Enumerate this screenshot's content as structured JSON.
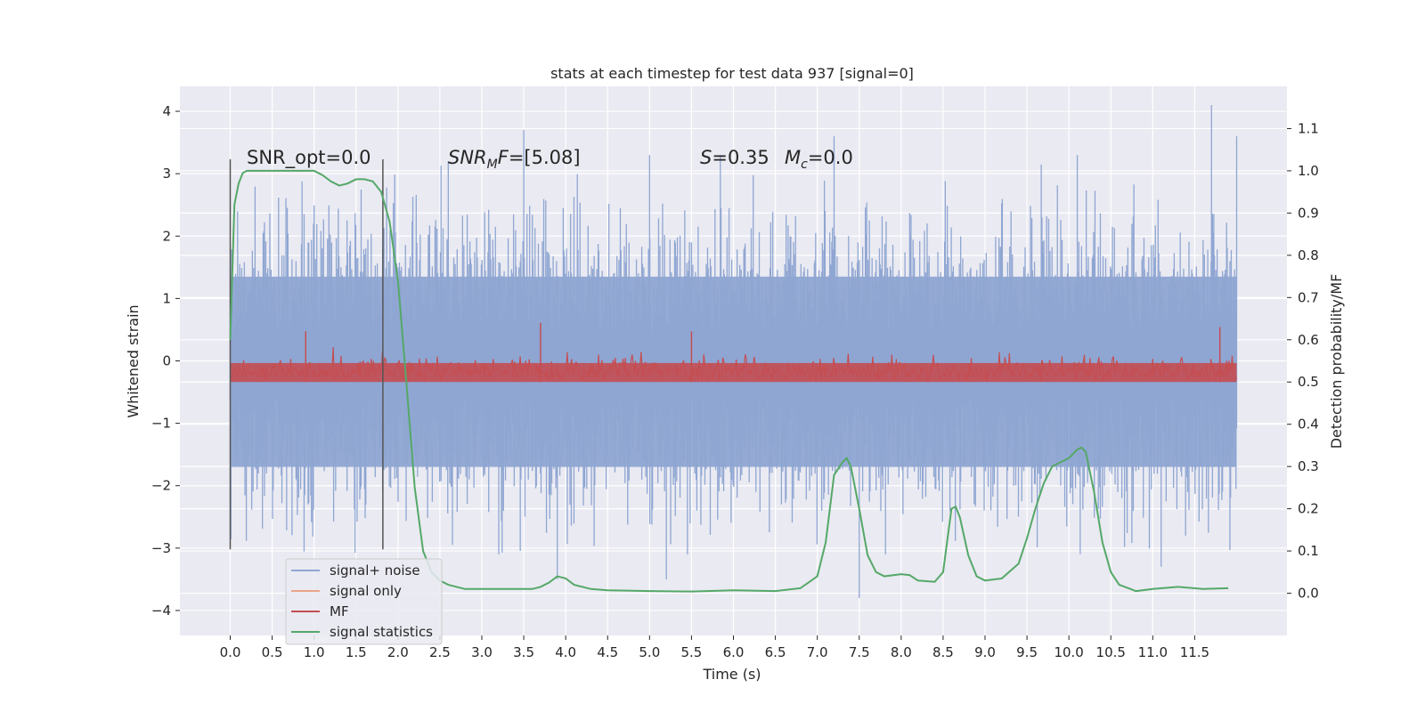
{
  "chart_data": {
    "type": "line",
    "title": "stats at each timestep for test data 937 [signal=0]",
    "xlabel": "Time (s)",
    "ylabel_left": "Whitened strain",
    "ylabel_right": "Detection probability/MF",
    "xlim": [
      -0.6,
      12.6
    ],
    "ylim_left": [
      -4.4,
      4.4
    ],
    "ylim_right": [
      -0.1,
      1.2
    ],
    "x_ticks": [
      "0.0",
      "0.5",
      "1.0",
      "1.5",
      "2.0",
      "2.5",
      "3.0",
      "3.5",
      "4.0",
      "4.5",
      "5.0",
      "5.5",
      "6.0",
      "6.5",
      "7.0",
      "7.5",
      "8.0",
      "8.5",
      "9.0",
      "9.5",
      "10.0",
      "10.5",
      "11.0",
      "11.5"
    ],
    "y_ticks_left": [
      "4",
      "3",
      "2",
      "1",
      "0",
      "−1",
      "−2",
      "−3",
      "−4"
    ],
    "y_ticks_right": [
      "1.1",
      "1.0",
      "0.9",
      "0.8",
      "0.7",
      "0.6",
      "0.5",
      "0.4",
      "0.3",
      "0.2",
      "0.1",
      "0.0"
    ],
    "grid": true,
    "legend_position": "lower-left",
    "annotations": {
      "snr_opt_prefix": "SNR_opt=",
      "snr_opt_value": "0.0",
      "snr_mf_symbol": "SNR",
      "snr_mf_sub": "M",
      "snr_mf_rest": "F",
      "snr_mf_value": "=[5.08]",
      "s_symbol": "S",
      "s_value": "=0.35",
      "mc_symbol": "M",
      "mc_sub": "c",
      "mc_value": "=0.0"
    },
    "vlines_x": [
      0.0,
      1.82
    ],
    "series": [
      {
        "name": "signal+ noise",
        "color": "#8fa6d2",
        "axis": "left",
        "description_range": [
          -4.0,
          4.1
        ],
        "x_range": [
          0.0,
          12.0
        ],
        "peaks": [
          {
            "x": 2.6,
            "y": 3.2
          },
          {
            "x": 3.5,
            "y": 3.7
          },
          {
            "x": 5.0,
            "y": 3.3
          },
          {
            "x": 7.2,
            "y": 3.6
          },
          {
            "x": 10.1,
            "y": 3.3
          },
          {
            "x": 11.7,
            "y": 4.1
          },
          {
            "x": 12.0,
            "y": 3.6
          },
          {
            "x": 7.5,
            "y": -3.8
          },
          {
            "x": 3.9,
            "y": -3.5
          },
          {
            "x": 5.2,
            "y": -3.5
          },
          {
            "x": 11.1,
            "y": -3.3
          }
        ]
      },
      {
        "name": "signal only",
        "color": "#e9a58a",
        "axis": "left",
        "values": [
          0.0
        ]
      },
      {
        "name": "MF",
        "color": "#c44e52",
        "axis": "right",
        "baseline": 0.5,
        "x_range": [
          0.0,
          12.0
        ],
        "peaks": [
          {
            "x": 0.9,
            "y": 0.62
          },
          {
            "x": 3.7,
            "y": 0.64
          },
          {
            "x": 5.5,
            "y": 0.62
          },
          {
            "x": 11.8,
            "y": 0.63
          }
        ]
      },
      {
        "name": "signal statistics",
        "color": "#55a868",
        "axis": "right",
        "x": [
          0.0,
          0.05,
          0.1,
          0.15,
          0.2,
          0.3,
          0.5,
          0.8,
          1.0,
          1.1,
          1.2,
          1.3,
          1.4,
          1.5,
          1.6,
          1.7,
          1.8,
          1.9,
          2.0,
          2.1,
          2.2,
          2.3,
          2.4,
          2.5,
          2.6,
          2.8,
          3.0,
          3.2,
          3.4,
          3.6,
          3.7,
          3.8,
          3.9,
          4.0,
          4.1,
          4.3,
          4.5,
          4.8,
          5.0,
          5.5,
          6.0,
          6.5,
          6.8,
          7.0,
          7.1,
          7.2,
          7.3,
          7.35,
          7.4,
          7.5,
          7.6,
          7.7,
          7.8,
          8.0,
          8.1,
          8.2,
          8.4,
          8.5,
          8.6,
          8.65,
          8.7,
          8.8,
          8.9,
          9.0,
          9.2,
          9.4,
          9.5,
          9.6,
          9.7,
          9.8,
          9.9,
          10.0,
          10.1,
          10.15,
          10.2,
          10.3,
          10.4,
          10.5,
          10.6,
          10.8,
          11.0,
          11.3,
          11.6,
          11.9
        ],
        "y": [
          0.6,
          0.92,
          0.97,
          0.995,
          1.0,
          1.0,
          1.0,
          1.0,
          1.0,
          0.99,
          0.975,
          0.965,
          0.97,
          0.98,
          0.98,
          0.975,
          0.95,
          0.88,
          0.74,
          0.5,
          0.25,
          0.1,
          0.05,
          0.03,
          0.02,
          0.01,
          0.01,
          0.01,
          0.01,
          0.01,
          0.015,
          0.025,
          0.04,
          0.035,
          0.02,
          0.01,
          0.007,
          0.006,
          0.005,
          0.004,
          0.007,
          0.005,
          0.012,
          0.04,
          0.12,
          0.28,
          0.31,
          0.32,
          0.3,
          0.2,
          0.09,
          0.05,
          0.04,
          0.045,
          0.043,
          0.03,
          0.027,
          0.05,
          0.2,
          0.205,
          0.18,
          0.09,
          0.04,
          0.03,
          0.035,
          0.07,
          0.13,
          0.2,
          0.26,
          0.3,
          0.31,
          0.32,
          0.34,
          0.345,
          0.335,
          0.24,
          0.12,
          0.05,
          0.02,
          0.005,
          0.01,
          0.015,
          0.01,
          0.012
        ]
      }
    ]
  }
}
